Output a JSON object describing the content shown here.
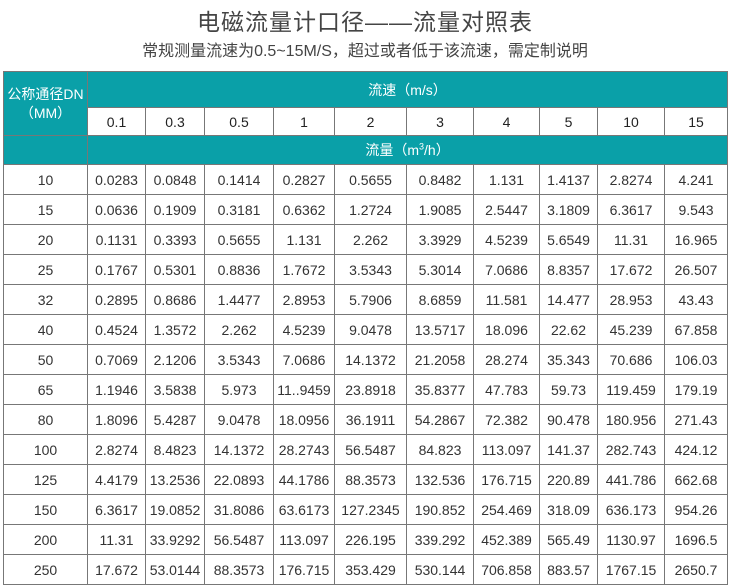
{
  "title": "电磁流量计口径——流量对照表",
  "subtitle": "常规测量流速为0.5~15M/S，超过或者低于该流速，需定制说明",
  "colors": {
    "header_bg": "#0aa0a8",
    "header_text": "#ffffff"
  },
  "table": {
    "dn_header_line1": "公称通径DN",
    "dn_header_line2": "（MM）",
    "velocity_header": "流速（m/s）",
    "flow_header_prefix": "流量（m",
    "flow_header_sup": "3",
    "flow_header_suffix": "/h）",
    "velocities": [
      "0.1",
      "0.3",
      "0.5",
      "1",
      "2",
      "3",
      "4",
      "5",
      "10",
      "15"
    ],
    "rows": [
      {
        "dn": "10",
        "values": [
          "0.0283",
          "0.0848",
          "0.1414",
          "0.2827",
          "0.5655",
          "0.8482",
          "1.131",
          "1.4137",
          "2.8274",
          "4.241"
        ]
      },
      {
        "dn": "15",
        "values": [
          "0.0636",
          "0.1909",
          "0.3181",
          "0.6362",
          "1.2724",
          "1.9085",
          "2.5447",
          "3.1809",
          "6.3617",
          "9.543"
        ]
      },
      {
        "dn": "20",
        "values": [
          "0.1131",
          "0.3393",
          "0.5655",
          "1.131",
          "2.262",
          "3.3929",
          "4.5239",
          "5.6549",
          "11.31",
          "16.965"
        ]
      },
      {
        "dn": "25",
        "values": [
          "0.1767",
          "0.5301",
          "0.8836",
          "1.7672",
          "3.5343",
          "5.3014",
          "7.0686",
          "8.8357",
          "17.672",
          "26.507"
        ]
      },
      {
        "dn": "32",
        "values": [
          "0.2895",
          "0.8686",
          "1.4477",
          "2.8953",
          "5.7906",
          "8.6859",
          "11.581",
          "14.477",
          "28.953",
          "43.43"
        ]
      },
      {
        "dn": "40",
        "values": [
          "0.4524",
          "1.3572",
          "2.262",
          "4.5239",
          "9.0478",
          "13.5717",
          "18.096",
          "22.62",
          "45.239",
          "67.858"
        ]
      },
      {
        "dn": "50",
        "values": [
          "0.7069",
          "2.1206",
          "3.5343",
          "7.0686",
          "14.1372",
          "21.2058",
          "28.274",
          "35.343",
          "70.686",
          "106.03"
        ]
      },
      {
        "dn": "65",
        "values": [
          "1.1946",
          "3.5838",
          "5.973",
          "11..9459",
          "23.8918",
          "35.8377",
          "47.783",
          "59.73",
          "119.459",
          "179.19"
        ]
      },
      {
        "dn": "80",
        "values": [
          "1.8096",
          "5.4287",
          "9.0478",
          "18.0956",
          "36.1911",
          "54.2867",
          "72.382",
          "90.478",
          "180.956",
          "271.43"
        ]
      },
      {
        "dn": "100",
        "values": [
          "2.8274",
          "8.4823",
          "14.1372",
          "28.2743",
          "56.5487",
          "84.823",
          "113.097",
          "141.37",
          "282.743",
          "424.12"
        ]
      },
      {
        "dn": "125",
        "values": [
          "4.4179",
          "13.2536",
          "22.0893",
          "44.1786",
          "88.3573",
          "132.536",
          "176.715",
          "220.89",
          "441.786",
          "662.68"
        ]
      },
      {
        "dn": "150",
        "values": [
          "6.3617",
          "19.0852",
          "31.8086",
          "63.6173",
          "127.2345",
          "190.852",
          "254.469",
          "318.09",
          "636.173",
          "954.26"
        ]
      },
      {
        "dn": "200",
        "values": [
          "11.31",
          "33.9292",
          "56.5487",
          "113.097",
          "226.195",
          "339.292",
          "452.389",
          "565.49",
          "1130.97",
          "1696.5"
        ]
      },
      {
        "dn": "250",
        "values": [
          "17.672",
          "53.0144",
          "88.3573",
          "176.715",
          "353.429",
          "530.144",
          "706.858",
          "883.57",
          "1767.15",
          "2650.7"
        ]
      }
    ]
  }
}
